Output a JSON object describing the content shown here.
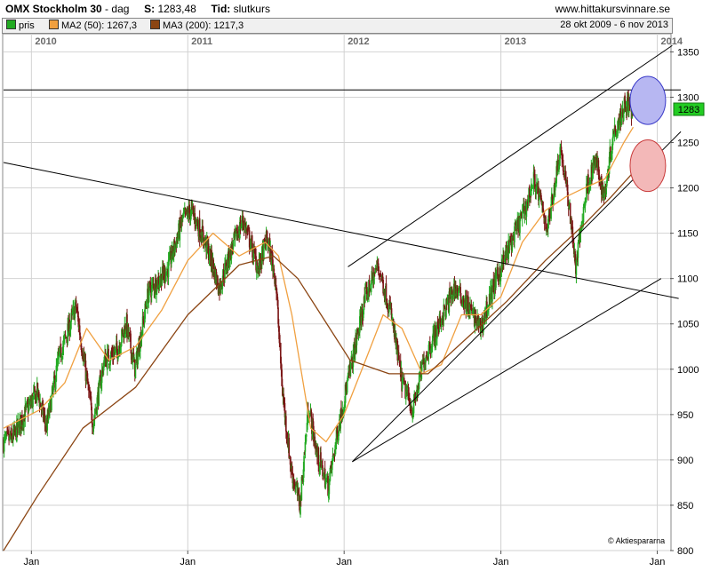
{
  "header": {
    "title": "OMX Stockholm 30",
    "period": "dag",
    "last_label": "S:",
    "last_value": "1283,48",
    "type_label": "Tid:",
    "type_value": "slutkurs",
    "website": "www.hittakursvinnare.se"
  },
  "legend": {
    "items": [
      {
        "label": "pris",
        "color": "#22aa22"
      },
      {
        "label": "MA2 (50): 1267,3",
        "color": "#f0a040"
      },
      {
        "label": "MA3 (200): 1217,3",
        "color": "#8b4513"
      }
    ],
    "date_range": "28 okt 2009 - 6 nov 2013"
  },
  "watermark": "© Aktiespararna",
  "last_price_badge": "1283",
  "chart_data": {
    "type": "candlestick",
    "title": "OMX Stockholm 30",
    "y_ticks": [
      800,
      850,
      900,
      950,
      1000,
      1050,
      1100,
      1150,
      1200,
      1250,
      1300,
      1350
    ],
    "ylim": [
      800,
      1370
    ],
    "xlim": [
      "2009-10-28",
      "2014-01-31"
    ],
    "year_labels": [
      "2010",
      "2011",
      "2012",
      "2013",
      "2014"
    ],
    "year_dates": [
      "2010-01-01",
      "2011-01-01",
      "2012-01-01",
      "2013-01-01",
      "2014-01-01"
    ],
    "month_label": "Jan",
    "grid": true,
    "price_keypoints": [
      [
        "2009-10-28",
        920
      ],
      [
        "2009-11-20",
        925
      ],
      [
        "2009-12-15",
        950
      ],
      [
        "2010-01-15",
        975
      ],
      [
        "2010-02-05",
        935
      ],
      [
        "2010-03-05",
        1010
      ],
      [
        "2010-04-15",
        1070
      ],
      [
        "2010-05-25",
        940
      ],
      [
        "2010-06-20",
        1010
      ],
      [
        "2010-07-20",
        1020
      ],
      [
        "2010-08-10",
        1050
      ],
      [
        "2010-08-31",
        1000
      ],
      [
        "2010-10-01",
        1085
      ],
      [
        "2010-11-15",
        1110
      ],
      [
        "2010-12-20",
        1165
      ],
      [
        "2011-01-10",
        1175
      ],
      [
        "2011-02-15",
        1135
      ],
      [
        "2011-03-15",
        1090
      ],
      [
        "2011-04-15",
        1135
      ],
      [
        "2011-05-10",
        1165
      ],
      [
        "2011-06-15",
        1110
      ],
      [
        "2011-07-05",
        1145
      ],
      [
        "2011-07-25",
        1100
      ],
      [
        "2011-08-10",
        975
      ],
      [
        "2011-08-30",
        890
      ],
      [
        "2011-09-20",
        850
      ],
      [
        "2011-10-10",
        960
      ],
      [
        "2011-10-30",
        905
      ],
      [
        "2011-11-25",
        870
      ],
      [
        "2011-12-20",
        940
      ],
      [
        "2012-01-20",
        1010
      ],
      [
        "2012-02-20",
        1080
      ],
      [
        "2012-03-20",
        1115
      ],
      [
        "2012-04-20",
        1060
      ],
      [
        "2012-05-15",
        985
      ],
      [
        "2012-06-10",
        955
      ],
      [
        "2012-07-05",
        1010
      ],
      [
        "2012-08-01",
        1040
      ],
      [
        "2012-09-15",
        1090
      ],
      [
        "2012-10-15",
        1070
      ],
      [
        "2012-11-15",
        1045
      ],
      [
        "2012-12-10",
        1085
      ],
      [
        "2013-01-25",
        1140
      ],
      [
        "2013-02-25",
        1175
      ],
      [
        "2013-03-20",
        1210
      ],
      [
        "2013-04-20",
        1155
      ],
      [
        "2013-05-20",
        1245
      ],
      [
        "2013-06-15",
        1160
      ],
      [
        "2013-06-24",
        1110
      ],
      [
        "2013-07-20",
        1200
      ],
      [
        "2013-08-10",
        1230
      ],
      [
        "2013-08-30",
        1190
      ],
      [
        "2013-09-20",
        1260
      ],
      [
        "2013-10-20",
        1295
      ],
      [
        "2013-11-06",
        1283
      ]
    ],
    "ma50_keypoints": [
      [
        "2009-10-28",
        935
      ],
      [
        "2010-01-20",
        955
      ],
      [
        "2010-03-20",
        985
      ],
      [
        "2010-05-10",
        1045
      ],
      [
        "2010-07-01",
        1010
      ],
      [
        "2010-09-01",
        1025
      ],
      [
        "2010-11-01",
        1065
      ],
      [
        "2011-01-01",
        1120
      ],
      [
        "2011-03-01",
        1150
      ],
      [
        "2011-05-01",
        1125
      ],
      [
        "2011-07-01",
        1140
      ],
      [
        "2011-08-01",
        1125
      ],
      [
        "2011-09-01",
        1060
      ],
      [
        "2011-10-15",
        935
      ],
      [
        "2011-11-20",
        920
      ],
      [
        "2012-01-01",
        950
      ],
      [
        "2012-02-20",
        1010
      ],
      [
        "2012-04-01",
        1060
      ],
      [
        "2012-05-15",
        1045
      ],
      [
        "2012-07-01",
        995
      ],
      [
        "2012-08-15",
        1005
      ],
      [
        "2012-10-01",
        1060
      ],
      [
        "2012-11-15",
        1060
      ],
      [
        "2013-01-01",
        1080
      ],
      [
        "2013-02-20",
        1140
      ],
      [
        "2013-04-15",
        1175
      ],
      [
        "2013-06-01",
        1190
      ],
      [
        "2013-07-15",
        1200
      ],
      [
        "2013-09-01",
        1210
      ],
      [
        "2013-10-15",
        1250
      ],
      [
        "2013-11-06",
        1267
      ]
    ],
    "ma200_keypoints": [
      [
        "2009-10-28",
        800
      ],
      [
        "2010-01-15",
        860
      ],
      [
        "2010-05-01",
        935
      ],
      [
        "2010-09-01",
        980
      ],
      [
        "2011-01-01",
        1060
      ],
      [
        "2011-05-01",
        1115
      ],
      [
        "2011-07-20",
        1125
      ],
      [
        "2011-09-15",
        1100
      ],
      [
        "2011-11-15",
        1055
      ],
      [
        "2012-01-15",
        1010
      ],
      [
        "2012-04-15",
        995
      ],
      [
        "2012-07-15",
        995
      ],
      [
        "2012-10-15",
        1035
      ],
      [
        "2013-01-15",
        1075
      ],
      [
        "2013-04-15",
        1120
      ],
      [
        "2013-07-15",
        1160
      ],
      [
        "2013-09-15",
        1190
      ],
      [
        "2013-11-06",
        1217
      ]
    ],
    "trend_lines": [
      {
        "from": [
          "2009-10-28",
          1228
        ],
        "to": [
          "2014-02-20",
          1078
        ]
      },
      {
        "from": [
          "2009-10-28",
          1308
        ],
        "to": [
          "2014-02-25",
          1308
        ]
      },
      {
        "from": [
          "2012-01-10",
          1113
        ],
        "to": [
          "2014-02-05",
          1357
        ]
      },
      {
        "from": [
          "2012-01-20",
          898
        ],
        "to": [
          "2014-02-25",
          1262
        ]
      },
      {
        "from": [
          "2012-01-20",
          898
        ],
        "to": [
          "2014-01-10",
          1100
        ]
      }
    ],
    "target_zones": [
      {
        "date": "2013-12-10",
        "y_top": 1323,
        "y_bottom": 1270,
        "fill": "#b7b7f2",
        "stroke": "#3838c8"
      },
      {
        "date": "2013-12-10",
        "y_top": 1253,
        "y_bottom": 1196,
        "fill": "#f3b8b8",
        "stroke": "#c83838"
      }
    ],
    "series_colors": {
      "up": "#22aa22",
      "down": "#7a1414",
      "ma50": "#f0a040",
      "ma200": "#8b4513",
      "trend": "#000000"
    }
  }
}
